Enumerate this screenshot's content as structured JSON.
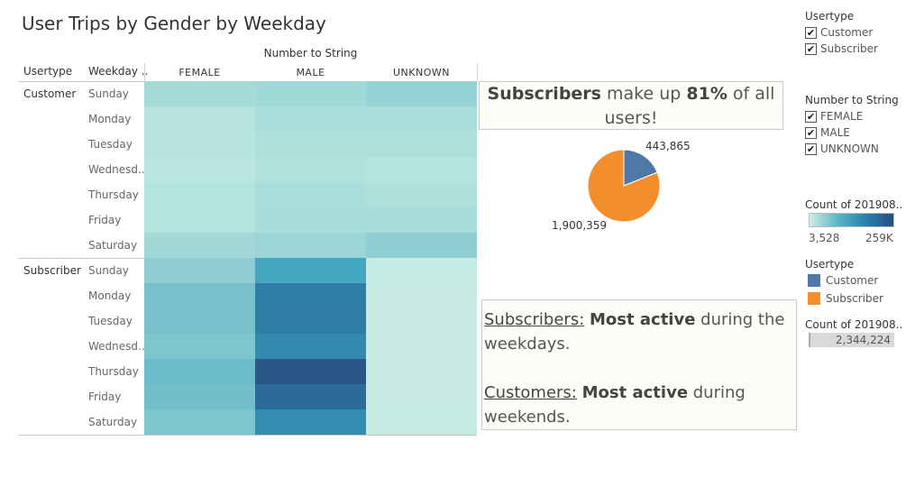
{
  "title": "User Trips by Gender by Weekday",
  "table": {
    "column_group": "Number to String",
    "headers": {
      "usertype": "Usertype",
      "weekday": "Weekday ..",
      "columns": [
        "FEMALE",
        "MALE",
        "UNKNOWN"
      ]
    },
    "groups": [
      {
        "name": "Customer",
        "rows": [
          {
            "weekday": "Sunday",
            "colors": [
              "#a4dbd9",
              "#9fd9d8",
              "#96d3d6"
            ]
          },
          {
            "weekday": "Monday",
            "colors": [
              "#b6e4dd",
              "#acdfdb",
              "#aadedb"
            ]
          },
          {
            "weekday": "Tuesday",
            "colors": [
              "#b7e5de",
              "#aedfdb",
              "#aedfdb"
            ]
          },
          {
            "weekday": "Wednesd..",
            "colors": [
              "#bbe6df",
              "#b1e1dc",
              "#b5e3dd"
            ]
          },
          {
            "weekday": "Thursday",
            "colors": [
              "#b5e4dd",
              "#aadedb",
              "#afe0dc"
            ]
          },
          {
            "weekday": "Friday",
            "colors": [
              "#b5e4dd",
              "#a9dddb",
              "#a9dddb"
            ]
          },
          {
            "weekday": "Saturday",
            "colors": [
              "#a2d9d8",
              "#9bd5d6",
              "#8ecdd4"
            ]
          }
        ]
      },
      {
        "name": "Subscriber",
        "rows": [
          {
            "weekday": "Sunday",
            "colors": [
              "#8fcdd3",
              "#44a7c2",
              "#c5eae1"
            ]
          },
          {
            "weekday": "Monday",
            "colors": [
              "#78c1cc",
              "#2f7ea9",
              "#c6eae2"
            ]
          },
          {
            "weekday": "Tuesday",
            "colors": [
              "#78c1cc",
              "#2e7ca8",
              "#c6eae2"
            ]
          },
          {
            "weekday": "Wednesd..",
            "colors": [
              "#7ec5ce",
              "#3389b1",
              "#c6eae2"
            ]
          },
          {
            "weekday": "Thursday",
            "colors": [
              "#6cbbca",
              "#2a5687",
              "#c6eae2"
            ]
          },
          {
            "weekday": "Friday",
            "colors": [
              "#72bfcb",
              "#2c6a9b",
              "#c6eae2"
            ]
          },
          {
            "weekday": "Saturday",
            "colors": [
              "#7fc5ce",
              "#328cb4",
              "#c5eae1"
            ]
          }
        ]
      }
    ]
  },
  "callout_top": {
    "part1": "Subscribers",
    "part2": " make up ",
    "part3": "81%",
    "part4": " of all users!"
  },
  "pie": {
    "chart_data": {
      "type": "pie",
      "slices": [
        {
          "name": "Customer",
          "value": 443865,
          "label": "443,865",
          "color": "#4e79a7"
        },
        {
          "name": "Subscriber",
          "value": 1900359,
          "label": "1,900,359",
          "color": "#f28e2b"
        }
      ]
    }
  },
  "callout_bottom": {
    "sub_title": "Subscribers:",
    "sub_bold": "Most active",
    "sub_rest": " during the weekdays.",
    "cust_title": "Customers:",
    "cust_bold": "Most active",
    "cust_rest": " during weekends."
  },
  "filters": {
    "usertype": {
      "title": "Usertype",
      "items": [
        "Customer",
        "Subscriber"
      ]
    },
    "gender": {
      "title": "Number to String",
      "items": [
        "FEMALE",
        "MALE",
        "UNKNOWN"
      ]
    },
    "check_glyph": "✔"
  },
  "color_legend": {
    "title": "Count of 201908..",
    "min": "3,528",
    "max": "259K"
  },
  "usertype_legend": {
    "title": "Usertype",
    "items": [
      {
        "label": "Customer",
        "color": "#4e79a7"
      },
      {
        "label": "Subscriber",
        "color": "#f28e2b"
      }
    ]
  },
  "count_legend": {
    "title": "Count of 201908..",
    "value": "2,344,224"
  }
}
